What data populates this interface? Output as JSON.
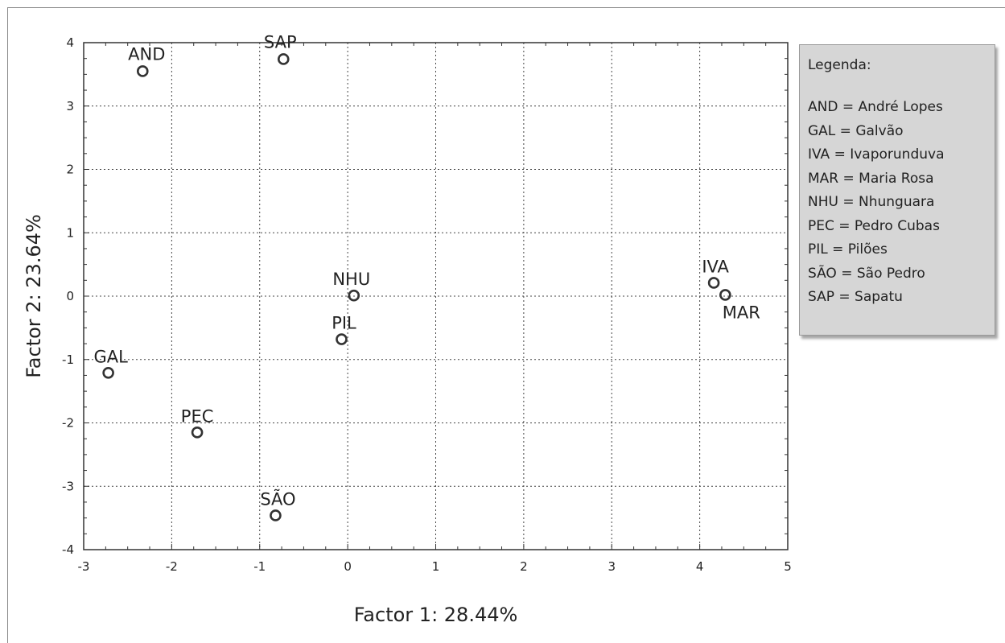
{
  "chart_data": {
    "type": "scatter",
    "xlabel": "Factor 1: 28.44%",
    "ylabel": "Factor 2: 23.64%",
    "xlim": [
      -3,
      5
    ],
    "ylim": [
      -4,
      4
    ],
    "x_ticks": [
      -3,
      -2,
      -1,
      0,
      1,
      2,
      3,
      4,
      5
    ],
    "y_ticks": [
      -4,
      -3,
      -2,
      -1,
      0,
      1,
      2,
      3,
      4
    ],
    "grid": true,
    "grid_style": "dotted",
    "points": [
      {
        "label": "AND",
        "x": -2.33,
        "y": 3.55
      },
      {
        "label": "SAP",
        "x": -0.73,
        "y": 3.74
      },
      {
        "label": "NHU",
        "x": 0.07,
        "y": 0.01
      },
      {
        "label": "PIL",
        "x": -0.07,
        "y": -0.68
      },
      {
        "label": "IVA",
        "x": 4.16,
        "y": 0.21
      },
      {
        "label": "MAR",
        "x": 4.29,
        "y": 0.02
      },
      {
        "label": "GAL",
        "x": -2.72,
        "y": -1.21
      },
      {
        "label": "PEC",
        "x": -1.71,
        "y": -2.15
      },
      {
        "label": "SÃO",
        "x": -0.82,
        "y": -3.46
      }
    ],
    "marker": "open-circle",
    "marker_color": "#333333"
  },
  "legend": {
    "title": "Legenda:",
    "entries": [
      "AND = André Lopes",
      "GAL = Galvão",
      "IVA = Ivaporunduva",
      "MAR = Maria Rosa",
      "NHU = Nhunguara",
      "PEC = Pedro Cubas",
      "PIL = Pilões",
      "SÃO = São Pedro",
      "SAP = Sapatu"
    ]
  }
}
